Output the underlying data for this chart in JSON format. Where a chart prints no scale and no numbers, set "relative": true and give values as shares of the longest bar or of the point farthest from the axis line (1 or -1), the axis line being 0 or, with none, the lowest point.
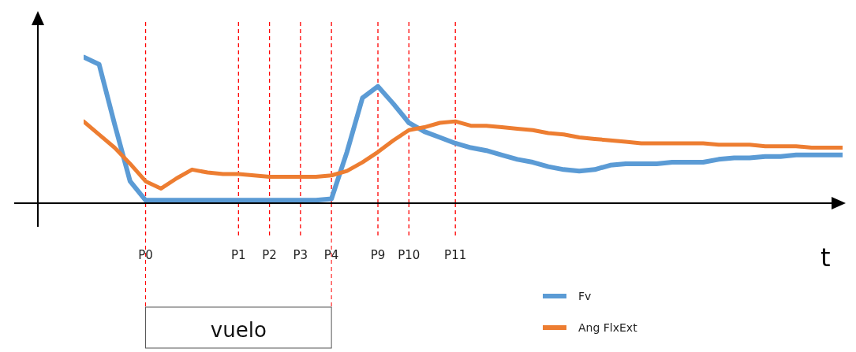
{
  "chart_data": {
    "type": "line",
    "xlabel": "t",
    "relative": true,
    "grid": false,
    "legend": "bottom right",
    "marker": "none",
    "line_style": "solid",
    "categories": [
      null,
      null,
      null,
      null,
      "P0",
      null,
      null,
      null,
      null,
      null,
      "P1",
      null,
      "P2",
      null,
      "P3",
      null,
      "P4",
      null,
      null,
      "P9",
      null,
      "P10",
      null,
      null,
      "P11",
      null,
      null,
      null,
      null,
      null,
      null,
      null,
      null,
      null,
      null,
      null,
      null,
      null,
      null,
      null,
      null,
      null,
      null,
      null,
      null,
      null,
      null,
      null,
      null,
      null
    ],
    "series": [
      {
        "name": "Fv",
        "color": "#5b9bd5",
        "values": [
          1,
          0.95,
          0.54,
          0.15,
          0.02,
          0.02,
          0.02,
          0.02,
          0.02,
          0.02,
          0.02,
          0.02,
          0.02,
          0.02,
          0.02,
          0.02,
          0.03,
          0.35,
          0.72,
          0.8,
          0.68,
          0.55,
          0.49,
          0.45,
          0.41,
          0.38,
          0.36,
          0.33,
          0.3,
          0.28,
          0.25,
          0.23,
          0.22,
          0.23,
          0.26,
          0.27,
          0.27,
          0.27,
          0.28,
          0.28,
          0.28,
          0.3,
          0.31,
          0.31,
          0.32,
          0.32,
          0.33,
          0.33,
          0.33,
          0.33
        ]
      },
      {
        "name": "Ang FlxExt",
        "color": "#ed7d31",
        "values": [
          0.56,
          0.47,
          0.38,
          0.27,
          0.15,
          0.1,
          0.17,
          0.23,
          0.21,
          0.2,
          0.2,
          0.19,
          0.18,
          0.18,
          0.18,
          0.18,
          0.19,
          0.22,
          0.28,
          0.35,
          0.43,
          0.5,
          0.52,
          0.55,
          0.56,
          0.53,
          0.53,
          0.52,
          0.51,
          0.5,
          0.48,
          0.47,
          0.45,
          0.44,
          0.43,
          0.42,
          0.41,
          0.41,
          0.41,
          0.41,
          0.41,
          0.4,
          0.4,
          0.4,
          0.39,
          0.39,
          0.39,
          0.38,
          0.38,
          0.38
        ]
      }
    ],
    "ref_lines": [
      {
        "axis": "x",
        "value": "P0",
        "color": "#ff0000",
        "line_style": "dashed"
      },
      {
        "axis": "x",
        "value": "P1",
        "color": "#ff0000",
        "line_style": "dashed"
      },
      {
        "axis": "x",
        "value": "P2",
        "color": "#ff0000",
        "line_style": "dashed"
      },
      {
        "axis": "x",
        "value": "P3",
        "color": "#ff0000",
        "line_style": "dashed"
      },
      {
        "axis": "x",
        "value": "P4",
        "color": "#ff0000",
        "line_style": "dashed"
      },
      {
        "axis": "x",
        "value": "P9",
        "color": "#ff0000",
        "line_style": "dashed"
      },
      {
        "axis": "x",
        "value": "P10",
        "color": "#ff0000",
        "line_style": "dashed"
      },
      {
        "axis": "x",
        "value": "P11",
        "color": "#ff0000",
        "line_style": "dashed"
      }
    ],
    "annotations": [
      "vuelo"
    ]
  }
}
